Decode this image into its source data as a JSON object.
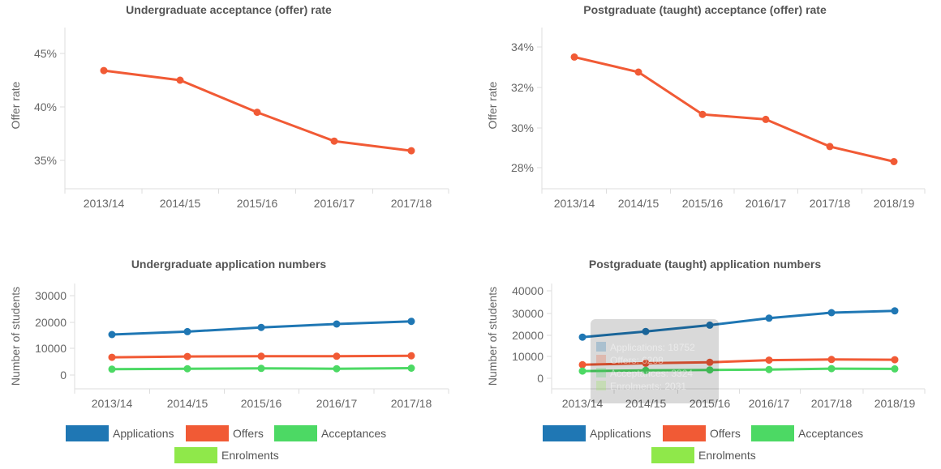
{
  "chart_data": [
    {
      "type": "line",
      "title": "Undergraduate acceptance (offer) rate",
      "ylabel": "Offer rate",
      "xlabel": "",
      "categories": [
        "2013/14",
        "2014/15",
        "2015/16",
        "2016/17",
        "2017/18"
      ],
      "yticks": [
        "45%",
        "40%",
        "35%"
      ],
      "series": [
        {
          "name": "Offer rate",
          "color": "#f15a35",
          "values": [
            43.4,
            42.5,
            39.5,
            36.8,
            35.9
          ]
        }
      ]
    },
    {
      "type": "line",
      "title": "Postgraduate (taught) acceptance (offer) rate",
      "ylabel": "Offer rate",
      "xlabel": "",
      "categories": [
        "2013/14",
        "2014/15",
        "2015/16",
        "2016/17",
        "2017/18",
        "2018/19"
      ],
      "yticks": [
        "34%",
        "32%",
        "30%",
        "28%"
      ],
      "series": [
        {
          "name": "Offer rate",
          "color": "#f15a35",
          "values": [
            33.5,
            32.75,
            30.65,
            30.4,
            29.05,
            28.3
          ]
        }
      ]
    },
    {
      "type": "line",
      "title": "Undergraduate application numbers",
      "ylabel": "Number of students",
      "xlabel": "",
      "categories": [
        "2013/14",
        "2014/15",
        "2015/16",
        "2016/17",
        "2017/18"
      ],
      "yticks": [
        "30000",
        "20000",
        "10000",
        "0"
      ],
      "series": [
        {
          "name": "Applications",
          "color": "#1f77b4",
          "values": [
            15300,
            16400,
            18000,
            19300,
            20300
          ]
        },
        {
          "name": "Offers",
          "color": "#f15a35",
          "values": [
            6700,
            7000,
            7100,
            7100,
            7300
          ]
        },
        {
          "name": "Acceptances",
          "color": "#4cd964",
          "values": [
            2200,
            2400,
            2500,
            2400,
            2600
          ]
        }
      ],
      "legend": [
        "Applications",
        "Offers",
        "Acceptances",
        "Enrolments"
      ]
    },
    {
      "type": "line",
      "title": "Postgraduate (taught) application numbers",
      "ylabel": "Number of students",
      "xlabel": "",
      "categories": [
        "2013/14",
        "2014/15",
        "2015/16",
        "2016/17",
        "2017/18",
        "2018/19"
      ],
      "yticks": [
        "40000",
        "30000",
        "20000",
        "10000",
        "0"
      ],
      "series": [
        {
          "name": "Applications",
          "color": "#1f77b4",
          "values": [
            18800,
            21400,
            24300,
            27500,
            30000,
            30800
          ]
        },
        {
          "name": "Offers",
          "color": "#f15a35",
          "values": [
            6200,
            6900,
            7300,
            8300,
            8600,
            8500
          ]
        },
        {
          "name": "Acceptances",
          "color": "#4cd964",
          "values": [
            3300,
            3600,
            3800,
            4000,
            4400,
            4300
          ]
        }
      ],
      "legend": [
        "Applications",
        "Offers",
        "Acceptances",
        "Enrolments"
      ]
    }
  ],
  "legend_colors": {
    "Applications": "#1f77b4",
    "Offers": "#f15a35",
    "Acceptances": "#4cd964",
    "Enrolments": "#8fe84a"
  },
  "tooltip_lines": [
    "Applications: 18752",
    "Offers: 6208",
    "Acceptances: 3324",
    "Enrolments: 2031"
  ]
}
